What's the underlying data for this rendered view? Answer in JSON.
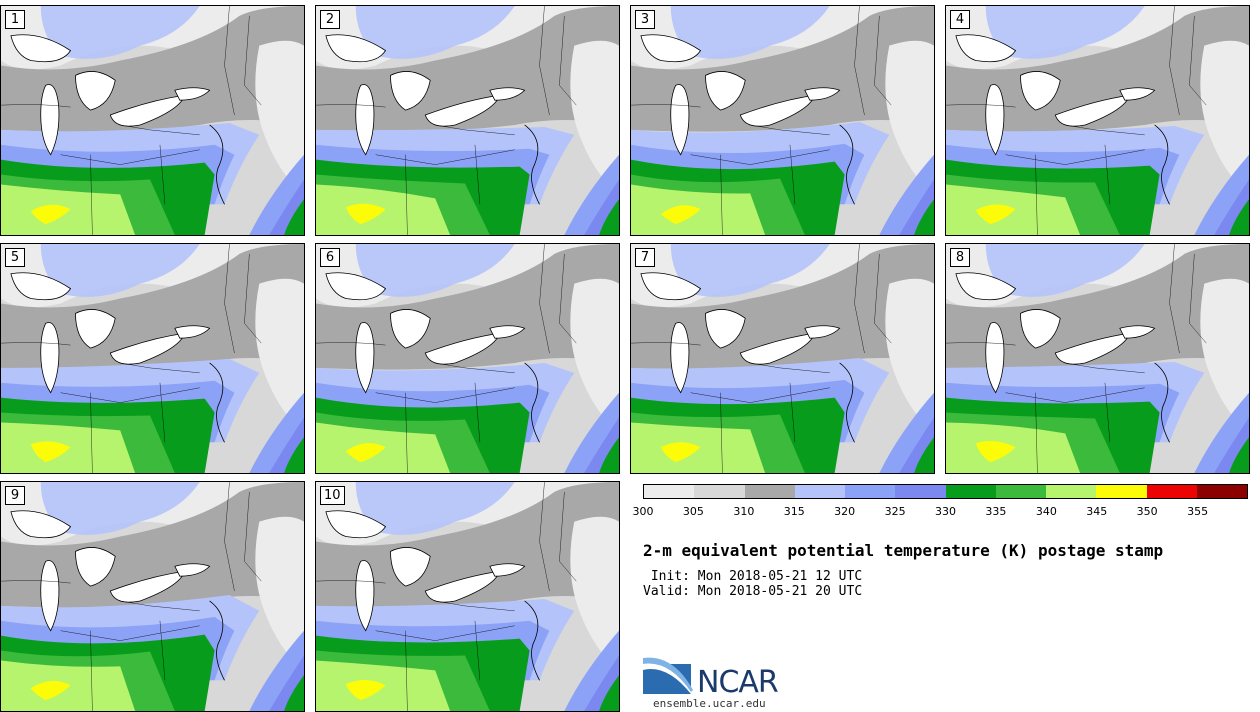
{
  "panels": [
    "1",
    "2",
    "3",
    "4",
    "5",
    "6",
    "7",
    "8",
    "9",
    "10"
  ],
  "colorbar": {
    "colors": [
      "#ececec",
      "#d8d8d8",
      "#a8a8a8",
      "#b4c4fa",
      "#8ca2f6",
      "#7a88f0",
      "#089c1c",
      "#3cba3c",
      "#b6f46e",
      "#fcfc08",
      "#ec0404",
      "#8c0000"
    ],
    "ticks": [
      "300",
      "305",
      "310",
      "315",
      "320",
      "325",
      "330",
      "335",
      "340",
      "345",
      "350",
      "355"
    ]
  },
  "title": "2-m equivalent potential temperature (K) postage stamp",
  "init": " Init: Mon 2018-05-21 12 UTC",
  "valid": "Valid: Mon 2018-05-21 20 UTC",
  "logo": {
    "text": "NCAR",
    "site": "ensemble.ucar.edu"
  }
}
